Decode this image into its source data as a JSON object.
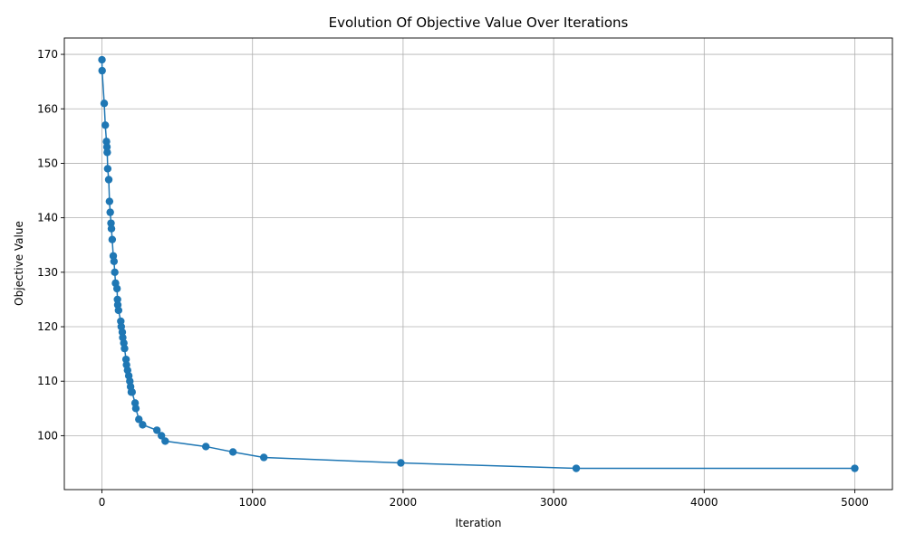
{
  "chart_data": {
    "type": "line",
    "title": "Evolution Of Objective Value Over Iterations",
    "xlabel": "Iteration",
    "ylabel": "Objective Value",
    "xlim": [
      -250,
      5250
    ],
    "ylim": [
      90.1,
      173.0
    ],
    "xticks": [
      0,
      1000,
      2000,
      3000,
      4000,
      5000
    ],
    "yticks": [
      100,
      110,
      120,
      130,
      140,
      150,
      160,
      170
    ],
    "grid": true,
    "markers": true,
    "color": "#1f77b4",
    "series": [
      {
        "x": [
          0,
          1,
          15,
          22,
          30,
          33,
          35,
          38,
          45,
          50,
          55,
          60,
          63,
          68,
          75,
          80,
          85,
          90,
          100,
          103,
          105,
          110,
          125,
          128,
          135,
          138,
          145,
          150,
          160,
          163,
          170,
          178,
          185,
          190,
          195,
          200,
          220,
          225,
          245,
          270,
          365,
          395,
          420,
          690,
          870,
          1075,
          1985,
          3150,
          5000
        ],
        "y": [
          169,
          167,
          161,
          157,
          154,
          153,
          152,
          149,
          147,
          143,
          141,
          139,
          138,
          136,
          133,
          132,
          130,
          128,
          127,
          125,
          124,
          123,
          121,
          120,
          119,
          118,
          117,
          116,
          114,
          113,
          112,
          111,
          110,
          109,
          108,
          108,
          106,
          105,
          103,
          102,
          101,
          100,
          99,
          98,
          97,
          96,
          95,
          94,
          94
        ]
      }
    ]
  }
}
